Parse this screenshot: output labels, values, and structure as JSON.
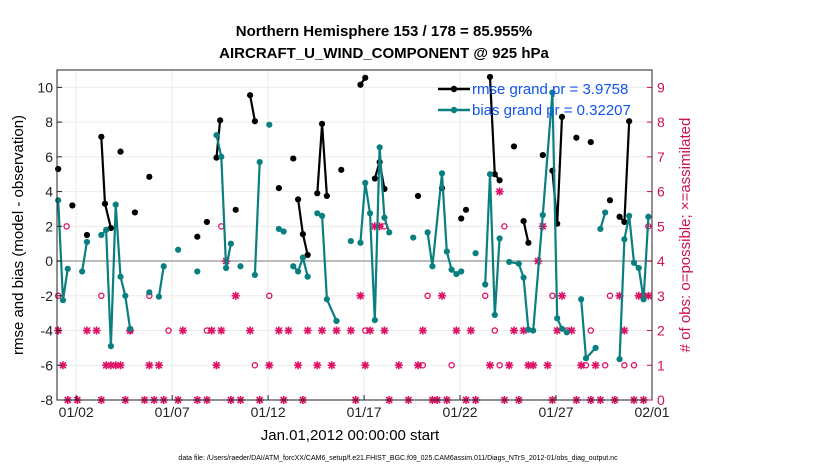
{
  "chart_data": {
    "type": "line",
    "title_line1": "Northern Hemisphere 153 / 178 = 85.955%",
    "title_line2": "AIRCRAFT_U_WIND_COMPONENT @ 925 hPa",
    "xlabel": "Jan.01,2012 00:00:00 start",
    "ylabel": "rmse and bias (model - observation)",
    "ylabel_right": "# of obs: o=possible; ×=assimilated",
    "footnote": "data file: /Users/raeder/DAI/ATM_forcXX/CAM6_setup/f.e21.FHIST_BGC.f09_025.CAM6assim.011/Diags_NTrS_2012-01/obs_diag_output.nc",
    "xlim": [
      1.0,
      32.0
    ],
    "ylim": [
      -8,
      11
    ],
    "ylim_right": [
      0,
      9.5
    ],
    "x_ticks": [
      2,
      7,
      12,
      17,
      22,
      27,
      32
    ],
    "x_tick_labels": [
      "01/02",
      "01/07",
      "01/12",
      "01/17",
      "01/22",
      "01/27",
      "02/01"
    ],
    "y_ticks": [
      -8,
      -6,
      -4,
      -2,
      0,
      2,
      4,
      6,
      8,
      10
    ],
    "y_tick_labels": [
      "-8",
      "-6",
      "-4",
      "-2",
      "0",
      "2",
      "4",
      "6",
      "8",
      "10"
    ],
    "y_ticks_right": [
      0,
      1,
      2,
      3,
      4,
      5,
      6,
      7,
      8,
      9
    ],
    "y_tick_labels_right": [
      "0",
      "1",
      "2",
      "3",
      "4",
      "5",
      "6",
      "7",
      "8",
      "9"
    ],
    "zero_line": 0,
    "colors": {
      "rmse": "#000000",
      "bias": "#0a7f80",
      "counts": "#dd1166",
      "legend_text": "#1155ee",
      "zero_line": "#bbbbbb"
    },
    "series": [
      {
        "name": "rmse grand pr = 3.9758",
        "points": [
          [
            1.06,
            5.3
          ],
          [
            1.8,
            3.2
          ],
          [
            2.56,
            1.5
          ],
          [
            3.31,
            7.15
          ],
          [
            3.5,
            3.3
          ],
          [
            3.81,
            1.9
          ],
          [
            4.31,
            6.3
          ],
          [
            5.06,
            2.8
          ],
          [
            5.81,
            4.85
          ],
          [
            8.31,
            1.4
          ],
          [
            8.81,
            2.25
          ],
          [
            9.31,
            5.95
          ],
          [
            9.5,
            8.1
          ],
          [
            10.31,
            2.95
          ],
          [
            11.06,
            9.55
          ],
          [
            11.31,
            8.05
          ],
          [
            12.56,
            4.2
          ],
          [
            13.31,
            5.9
          ],
          [
            13.56,
            3.55
          ],
          [
            13.81,
            1.55
          ],
          [
            14.06,
            0.35
          ],
          [
            14.56,
            3.9
          ],
          [
            14.81,
            7.9
          ],
          [
            15.06,
            3.75
          ],
          [
            15.81,
            5.25
          ],
          [
            16.81,
            10.15
          ],
          [
            17.06,
            10.55
          ],
          [
            17.56,
            4.75
          ],
          [
            17.81,
            5.7
          ],
          [
            18.06,
            4.15
          ],
          [
            19.81,
            3.75
          ],
          [
            21.06,
            4.2
          ],
          [
            22.06,
            2.45
          ],
          [
            22.31,
            2.95
          ],
          [
            23.56,
            10.6
          ],
          [
            23.81,
            5.0
          ],
          [
            24.06,
            4.65
          ],
          [
            24.81,
            6.6
          ],
          [
            25.31,
            2.3
          ],
          [
            25.56,
            1.05
          ],
          [
            26.31,
            6.1
          ],
          [
            26.81,
            5.2
          ],
          [
            27.06,
            2.15
          ],
          [
            27.31,
            8.3
          ],
          [
            28.06,
            7.1
          ],
          [
            28.81,
            6.85
          ],
          [
            29.81,
            3.5
          ],
          [
            30.31,
            2.55
          ],
          [
            30.56,
            2.25
          ],
          [
            30.81,
            8.05
          ]
        ],
        "segments": [
          [
            3.31,
            3.5,
            3.81
          ],
          [
            9.31,
            9.5
          ],
          [
            11.06,
            11.31
          ],
          [
            13.56,
            13.81,
            14.06
          ],
          [
            14.56,
            14.81,
            15.06
          ],
          [
            16.81,
            17.06
          ],
          [
            17.56,
            17.81,
            18.06
          ],
          [
            23.56,
            23.81,
            24.06
          ],
          [
            25.31,
            25.56
          ],
          [
            26.81,
            27.06,
            27.31
          ],
          [
            30.31,
            30.56,
            30.81
          ]
        ]
      },
      {
        "name": "bias grand pr = 0.32207",
        "points": [
          [
            1.06,
            3.5
          ],
          [
            1.31,
            -2.25
          ],
          [
            1.56,
            -0.45
          ],
          [
            2.31,
            -0.6
          ],
          [
            2.56,
            1.1
          ],
          [
            3.31,
            1.5
          ],
          [
            3.56,
            1.8
          ],
          [
            3.81,
            -4.9
          ],
          [
            4.06,
            3.25
          ],
          [
            4.31,
            -0.9
          ],
          [
            4.56,
            -2.0
          ],
          [
            4.81,
            -3.9
          ],
          [
            5.81,
            -1.8
          ],
          [
            6.31,
            -2.05
          ],
          [
            6.56,
            -0.3
          ],
          [
            7.31,
            0.65
          ],
          [
            8.31,
            -0.6
          ],
          [
            9.31,
            7.25
          ],
          [
            9.56,
            6.0
          ],
          [
            9.81,
            -0.4
          ],
          [
            10.06,
            1.0
          ],
          [
            10.56,
            -0.3
          ],
          [
            11.31,
            -0.8
          ],
          [
            11.56,
            5.7
          ],
          [
            12.06,
            7.85
          ],
          [
            12.56,
            1.85
          ],
          [
            12.81,
            1.7
          ],
          [
            13.31,
            -0.3
          ],
          [
            13.56,
            -0.6
          ],
          [
            13.81,
            0.2
          ],
          [
            14.06,
            -0.9
          ],
          [
            14.56,
            2.75
          ],
          [
            14.81,
            2.6
          ],
          [
            15.06,
            -2.2
          ],
          [
            15.56,
            -3.45
          ],
          [
            16.31,
            1.15
          ],
          [
            16.81,
            1.05
          ],
          [
            17.06,
            4.5
          ],
          [
            17.31,
            2.75
          ],
          [
            17.56,
            -3.4
          ],
          [
            17.81,
            6.55
          ],
          [
            18.06,
            2.5
          ],
          [
            18.31,
            1.65
          ],
          [
            19.56,
            1.35
          ],
          [
            20.31,
            1.65
          ],
          [
            20.56,
            -0.3
          ],
          [
            21.06,
            5.05
          ],
          [
            21.31,
            0.55
          ],
          [
            21.56,
            -0.5
          ],
          [
            21.81,
            -0.75
          ],
          [
            22.06,
            -0.6
          ],
          [
            22.81,
            0.45
          ],
          [
            23.31,
            -1.35
          ],
          [
            23.56,
            5.0
          ],
          [
            23.81,
            -3.1
          ],
          [
            24.06,
            1.3
          ],
          [
            24.56,
            -0.05
          ],
          [
            25.06,
            -0.15
          ],
          [
            25.31,
            -0.95
          ],
          [
            25.56,
            -3.95
          ],
          [
            25.81,
            -4.0
          ],
          [
            26.31,
            2.65
          ],
          [
            26.81,
            9.7
          ],
          [
            27.06,
            -3.3
          ],
          [
            27.31,
            -3.9
          ],
          [
            27.56,
            -4.1
          ],
          [
            28.31,
            -2.2
          ],
          [
            28.56,
            -5.6
          ],
          [
            29.06,
            -5.0
          ],
          [
            29.31,
            1.85
          ],
          [
            29.56,
            2.8
          ],
          [
            30.31,
            -5.65
          ],
          [
            30.56,
            1.25
          ],
          [
            30.81,
            2.6
          ],
          [
            31.06,
            -0.1
          ],
          [
            31.31,
            -0.4
          ],
          [
            31.56,
            -2.2
          ],
          [
            31.81,
            2.55
          ]
        ],
        "segments": [
          [
            1.06,
            1.31,
            1.56
          ],
          [
            2.31,
            2.56
          ],
          [
            3.31,
            3.56,
            3.81,
            4.06,
            4.31,
            4.56,
            4.81
          ],
          [
            6.31,
            6.56
          ],
          [
            9.31,
            9.56,
            9.81,
            10.06
          ],
          [
            11.31,
            11.56
          ],
          [
            12.56,
            12.81
          ],
          [
            13.31,
            13.56,
            13.81,
            14.06
          ],
          [
            14.56,
            14.81,
            15.06,
            15.56
          ],
          [
            16.81,
            17.06,
            17.31,
            17.56,
            17.81,
            18.06,
            18.31
          ],
          [
            20.31,
            20.56,
            21.06,
            21.31,
            21.56,
            21.81,
            22.06
          ],
          [
            23.31,
            23.56,
            23.81,
            24.06
          ],
          [
            24.56,
            25.06,
            25.31,
            25.56,
            25.81,
            26.31,
            26.81,
            27.06,
            27.31,
            27.56
          ],
          [
            28.31,
            28.56,
            29.06
          ],
          [
            29.31,
            29.56
          ],
          [
            30.31,
            30.56,
            30.81,
            31.06,
            31.31,
            31.56,
            31.81
          ]
        ]
      }
    ],
    "obs_possible": [
      [
        1.5,
        5
      ],
      [
        1.06,
        3
      ],
      [
        3.31,
        3
      ],
      [
        4.81,
        2
      ],
      [
        5.81,
        3
      ],
      [
        6.81,
        2
      ],
      [
        8.81,
        2
      ],
      [
        9.56,
        5
      ],
      [
        12.06,
        3
      ],
      [
        11.31,
        1
      ],
      [
        17.06,
        2
      ],
      [
        18.06,
        5
      ],
      [
        20.06,
        1
      ],
      [
        20.31,
        3
      ],
      [
        21.56,
        1
      ],
      [
        23.31,
        3
      ],
      [
        23.81,
        2
      ],
      [
        24.31,
        5
      ],
      [
        24.06,
        1
      ],
      [
        26.81,
        3
      ],
      [
        27.56,
        2
      ],
      [
        28.56,
        1
      ],
      [
        28.81,
        2
      ],
      [
        29.56,
        1
      ],
      [
        29.81,
        3
      ],
      [
        30.56,
        1
      ],
      [
        31.06,
        1
      ],
      [
        31.56,
        3
      ],
      [
        31.81,
        5
      ]
    ],
    "obs_assimilated": [
      [
        1.06,
        2
      ],
      [
        1.31,
        1
      ],
      [
        1.56,
        0
      ],
      [
        2.06,
        0
      ],
      [
        2.56,
        2
      ],
      [
        3.06,
        2
      ],
      [
        3.31,
        0
      ],
      [
        3.56,
        1
      ],
      [
        3.81,
        1
      ],
      [
        4.06,
        1
      ],
      [
        4.31,
        1
      ],
      [
        4.56,
        0
      ],
      [
        4.81,
        2
      ],
      [
        5.56,
        0
      ],
      [
        5.81,
        1
      ],
      [
        6.06,
        0
      ],
      [
        6.31,
        1
      ],
      [
        6.56,
        0
      ],
      [
        7.31,
        0
      ],
      [
        7.56,
        2
      ],
      [
        8.31,
        0
      ],
      [
        8.81,
        0
      ],
      [
        9.06,
        2
      ],
      [
        9.31,
        1
      ],
      [
        9.56,
        2
      ],
      [
        9.81,
        4
      ],
      [
        10.06,
        0
      ],
      [
        10.31,
        3
      ],
      [
        10.56,
        0
      ],
      [
        11.06,
        2
      ],
      [
        11.56,
        0
      ],
      [
        12.06,
        1
      ],
      [
        12.56,
        2
      ],
      [
        12.81,
        0
      ],
      [
        13.06,
        2
      ],
      [
        13.56,
        1
      ],
      [
        13.81,
        0
      ],
      [
        14.06,
        2
      ],
      [
        14.56,
        1
      ],
      [
        14.81,
        2
      ],
      [
        15.31,
        1
      ],
      [
        15.56,
        2
      ],
      [
        16.31,
        2
      ],
      [
        16.56,
        0
      ],
      [
        16.81,
        3
      ],
      [
        17.06,
        1
      ],
      [
        17.31,
        2
      ],
      [
        17.56,
        5
      ],
      [
        17.81,
        5
      ],
      [
        18.06,
        2
      ],
      [
        18.31,
        0
      ],
      [
        18.81,
        1
      ],
      [
        19.31,
        0
      ],
      [
        19.81,
        1
      ],
      [
        20.06,
        2
      ],
      [
        20.56,
        0
      ],
      [
        20.81,
        0
      ],
      [
        21.06,
        3
      ],
      [
        21.31,
        0
      ],
      [
        21.81,
        2
      ],
      [
        22.31,
        0
      ],
      [
        22.56,
        2
      ],
      [
        22.81,
        0
      ],
      [
        23.56,
        1
      ],
      [
        24.06,
        6
      ],
      [
        24.31,
        0
      ],
      [
        24.56,
        1
      ],
      [
        24.81,
        2
      ],
      [
        25.06,
        0
      ],
      [
        25.31,
        2
      ],
      [
        25.56,
        1
      ],
      [
        25.81,
        1
      ],
      [
        26.06,
        4
      ],
      [
        26.31,
        5
      ],
      [
        26.56,
        1
      ],
      [
        26.81,
        0
      ],
      [
        27.06,
        2
      ],
      [
        27.31,
        3
      ],
      [
        27.81,
        2
      ],
      [
        28.06,
        0
      ],
      [
        28.31,
        1
      ],
      [
        28.81,
        0
      ],
      [
        29.06,
        1
      ],
      [
        29.31,
        0
      ],
      [
        30.06,
        0
      ],
      [
        30.31,
        3
      ],
      [
        30.56,
        2
      ],
      [
        31.06,
        0
      ],
      [
        31.31,
        3
      ],
      [
        31.56,
        0
      ],
      [
        31.81,
        3
      ]
    ]
  }
}
